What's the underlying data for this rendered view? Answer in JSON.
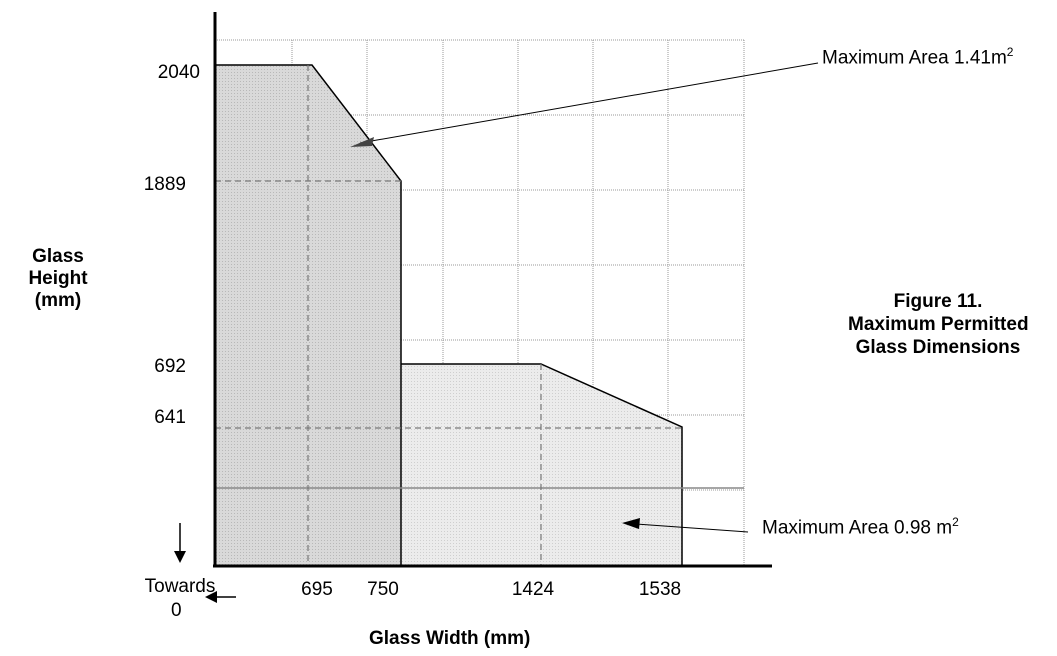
{
  "y_axis_label": [
    "Glass",
    "Height",
    "(mm)"
  ],
  "x_axis_label": "Glass Width (mm)",
  "y_ticks": [
    "2040",
    "1889",
    "692",
    "641"
  ],
  "x_ticks": [
    "695",
    "750",
    "1424",
    "1538"
  ],
  "towards_label": [
    "Towards",
    "0"
  ],
  "figure_title": [
    "Figure 11.",
    "Maximum Permitted",
    "Glass Dimensions"
  ],
  "annotation_top": {
    "text": "Maximum Area 1.41m",
    "superscript": "2"
  },
  "annotation_bottom": {
    "text": "Maximum Area 0.98 m",
    "superscript": "2"
  },
  "colors": {
    "upper_region": "#d6d6d6",
    "lower_region": "#e9e9e9",
    "overlap": "#c8c8c8",
    "grid": "#999999",
    "dashed": "#777777"
  }
}
